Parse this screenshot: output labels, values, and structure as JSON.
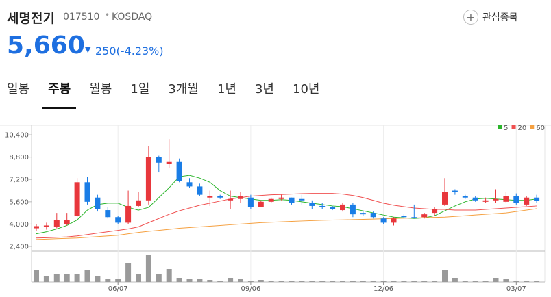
{
  "header": {
    "name": "세명전기",
    "code": "017510",
    "market": "KOSDAQ",
    "price": "5,660",
    "change": "250(-4.23%)",
    "watch_button": "관심종목"
  },
  "tabs": {
    "items": [
      "일봉",
      "주봉",
      "월봉",
      "1일",
      "3개월",
      "1년",
      "3년",
      "10년"
    ],
    "active": 1
  },
  "chart_data": {
    "type": "candlestick",
    "categories": [
      null,
      null,
      null,
      null,
      null,
      null,
      null,
      null,
      "06/07",
      null,
      null,
      null,
      null,
      null,
      null,
      null,
      null,
      null,
      null,
      null,
      null,
      "09/06",
      null,
      null,
      null,
      null,
      null,
      null,
      null,
      null,
      null,
      null,
      null,
      null,
      "12/06",
      null,
      null,
      null,
      null,
      null,
      null,
      null,
      null,
      null,
      null,
      null,
      null,
      "03/07",
      null,
      null
    ],
    "open": [
      3700,
      3800,
      3800,
      4000,
      4600,
      7000,
      5900,
      5000,
      4500,
      4100,
      5300,
      5700,
      8800,
      8300,
      8500,
      7000,
      6700,
      5900,
      6000,
      5700,
      5800,
      5900,
      5200,
      5600,
      5800,
      5900,
      5800,
      5500,
      5300,
      5200,
      5000,
      5400,
      4800,
      4800,
      4400,
      4100,
      4600,
      4500,
      4500,
      4800,
      5400,
      6400,
      6000,
      5900,
      5600,
      5700,
      5600,
      6000,
      5400,
      5900
    ],
    "high": [
      4000,
      4100,
      4800,
      4800,
      7300,
      7400,
      6100,
      5200,
      4600,
      6400,
      6300,
      9600,
      8900,
      10100,
      8700,
      7300,
      6900,
      6400,
      6100,
      6400,
      6300,
      6100,
      5700,
      5900,
      6100,
      5900,
      6100,
      5700,
      5500,
      5300,
      5500,
      5500,
      4900,
      4900,
      4500,
      4500,
      4700,
      5400,
      4800,
      5200,
      7300,
      6500,
      6100,
      6000,
      5900,
      6500,
      6300,
      6200,
      6000,
      6100
    ],
    "low": [
      3500,
      3600,
      3700,
      3900,
      4500,
      5400,
      4900,
      4400,
      4000,
      4000,
      5200,
      5400,
      7700,
      8000,
      7000,
      6600,
      6000,
      5300,
      5800,
      5100,
      5500,
      5100,
      5200,
      5500,
      5700,
      5400,
      5400,
      5100,
      5100,
      5000,
      4900,
      4500,
      4600,
      4400,
      4000,
      3900,
      4400,
      4400,
      4400,
      4600,
      5300,
      6100,
      5800,
      5600,
      5500,
      5500,
      5500,
      5400,
      5300,
      5500
    ],
    "close": [
      3850,
      3900,
      4300,
      4300,
      7000,
      5600,
      5100,
      4500,
      4100,
      5300,
      5700,
      8800,
      8400,
      8500,
      7100,
      6700,
      6100,
      6000,
      5900,
      5800,
      6000,
      5200,
      5600,
      5800,
      5900,
      5500,
      5700,
      5300,
      5200,
      5100,
      5400,
      4700,
      4700,
      4500,
      4100,
      4400,
      4500,
      4450,
      4700,
      5100,
      6300,
      6300,
      5900,
      5700,
      5700,
      5800,
      6000,
      5500,
      5900,
      5660
    ],
    "volume": [
      17,
      9,
      12,
      11,
      11,
      17,
      8,
      5,
      4,
      27,
      12,
      40,
      12,
      19,
      6,
      5,
      5,
      3,
      2,
      6,
      4,
      2,
      3,
      2,
      2,
      2,
      2,
      2,
      2,
      2,
      2,
      2,
      2,
      2,
      2,
      2,
      2,
      2,
      2,
      2,
      17,
      6,
      2,
      2,
      2,
      6,
      4,
      2,
      2,
      2
    ],
    "up_color": "#e8373c",
    "down_color": "#1a7de6",
    "volume_color": "#9a9a9a",
    "ma": [
      {
        "name": "5",
        "color": "#2bb52b",
        "values": [
          3300,
          3450,
          3650,
          3900,
          4300,
          5000,
          5400,
          5500,
          5500,
          5200,
          5000,
          5200,
          5900,
          6600,
          7400,
          7500,
          7300,
          7000,
          6400,
          6000,
          5900,
          5800,
          5700,
          5700,
          5750,
          5700,
          5600,
          5500,
          5400,
          5300,
          5250,
          5100,
          4950,
          4800,
          4650,
          4500,
          4450,
          4400,
          4450,
          4600,
          4950,
          5300,
          5600,
          5800,
          5850,
          5800,
          5750,
          5700,
          5700,
          5800
        ]
      },
      {
        "name": "20",
        "color": "#f05050",
        "values": [
          3000,
          3020,
          3050,
          3080,
          3150,
          3250,
          3350,
          3450,
          3550,
          3650,
          3800,
          4100,
          4400,
          4700,
          4950,
          5150,
          5350,
          5500,
          5650,
          5800,
          5900,
          6000,
          6050,
          6100,
          6120,
          6150,
          6180,
          6200,
          6200,
          6200,
          6150,
          6050,
          5900,
          5700,
          5500,
          5350,
          5250,
          5150,
          5100,
          5050,
          5050,
          5000,
          5000,
          5000,
          5050,
          5100,
          5150,
          5200,
          5250,
          5300
        ]
      },
      {
        "name": "60",
        "color": "#f5a040",
        "values": [
          2900,
          2920,
          2950,
          2980,
          3000,
          3050,
          3100,
          3150,
          3200,
          3300,
          3400,
          3480,
          3550,
          3620,
          3700,
          3750,
          3800,
          3850,
          3900,
          3950,
          4000,
          4050,
          4100,
          4130,
          4160,
          4190,
          4220,
          4250,
          4270,
          4290,
          4300,
          4320,
          4340,
          4360,
          4380,
          4400,
          4420,
          4440,
          4460,
          4480,
          4500,
          4550,
          4600,
          4650,
          4700,
          4750,
          4800,
          4900,
          5000,
          5100
        ]
      }
    ],
    "ylim": [
      2155,
      11090
    ],
    "yticks": [
      {
        "value": 2400,
        "label": "2,400"
      },
      {
        "value": 4000,
        "label": "4,000"
      },
      {
        "value": 5600,
        "label": "5,600"
      },
      {
        "value": 7200,
        "label": "7,200"
      },
      {
        "value": 8800,
        "label": "8,800"
      },
      {
        "value": 10400,
        "label": "10,400"
      }
    ],
    "legend": "top-right"
  }
}
